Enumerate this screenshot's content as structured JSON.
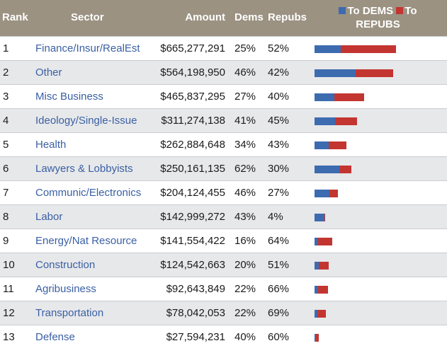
{
  "header": {
    "rank": "Rank",
    "sector": "Sector",
    "amount": "Amount",
    "dems": "Dems",
    "repubs": "Repubs",
    "legend_dems": "To DEMS",
    "legend_repubs": "To",
    "legend_repubs_line2": "REPUBS"
  },
  "colors": {
    "dem": "#3d6bb0",
    "rep": "#c33531",
    "header_bg": "#9b9282",
    "link": "#3a60a4"
  },
  "rows": [
    {
      "rank": "1",
      "sector": "Finance/Insur/RealEst",
      "amount": "$665,277,291",
      "dems": "25%",
      "repubs": "52%"
    },
    {
      "rank": "2",
      "sector": "Other",
      "amount": "$564,198,950",
      "dems": "46%",
      "repubs": "42%"
    },
    {
      "rank": "3",
      "sector": "Misc Business",
      "amount": "$465,837,295",
      "dems": "27%",
      "repubs": "40%"
    },
    {
      "rank": "4",
      "sector": "Ideology/Single-Issue",
      "amount": "$311,274,138",
      "dems": "41%",
      "repubs": "45%"
    },
    {
      "rank": "5",
      "sector": "Health",
      "amount": "$262,884,648",
      "dems": "34%",
      "repubs": "43%"
    },
    {
      "rank": "6",
      "sector": "Lawyers & Lobbyists",
      "amount": "$250,161,135",
      "dems": "62%",
      "repubs": "30%"
    },
    {
      "rank": "7",
      "sector": "Communic/Electronics",
      "amount": "$204,124,455",
      "dems": "46%",
      "repubs": "27%"
    },
    {
      "rank": "8",
      "sector": "Labor",
      "amount": "$142,999,272",
      "dems": "43%",
      "repubs": "4%"
    },
    {
      "rank": "9",
      "sector": "Energy/Nat Resource",
      "amount": "$141,554,422",
      "dems": "16%",
      "repubs": "64%"
    },
    {
      "rank": "10",
      "sector": "Construction",
      "amount": "$124,542,663",
      "dems": "20%",
      "repubs": "51%"
    },
    {
      "rank": "11",
      "sector": "Agribusiness",
      "amount": "$92,643,849",
      "dems": "22%",
      "repubs": "66%"
    },
    {
      "rank": "12",
      "sector": "Transportation",
      "amount": "$78,042,053",
      "dems": "22%",
      "repubs": "69%"
    },
    {
      "rank": "13",
      "sector": "Defense",
      "amount": "$27,594,231",
      "dems": "40%",
      "repubs": "60%"
    }
  ]
}
